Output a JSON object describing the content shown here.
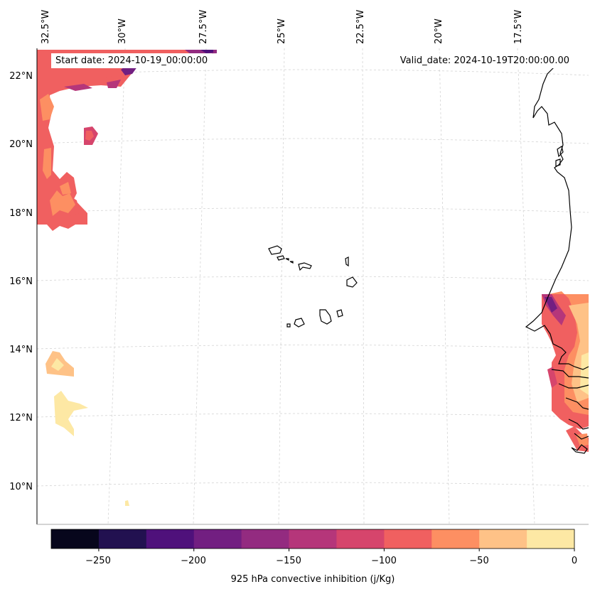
{
  "header": {
    "start_label": "Start date: 2024-10-19_00:00:00",
    "valid_label": "Valid_date: 2024-10-19T20:00:00.00"
  },
  "map": {
    "lon_labels": [
      "32.5°W",
      "30°W",
      "27.5°W",
      "25°W",
      "22.5°W",
      "20°W",
      "17.5°W"
    ],
    "lat_labels": [
      "22°N",
      "20°N",
      "18°N",
      "16°N",
      "14°N",
      "12°N",
      "10°N"
    ],
    "variable": "925 hPa convective inhibition",
    "units": "j/Kg"
  },
  "colorbar": {
    "title": "925 hPa convective inhibition (j/Kg)",
    "tick_labels": [
      "−250",
      "−200",
      "−150",
      "−100",
      "−50",
      "0"
    ],
    "levels": [
      -275,
      -250,
      -225,
      -200,
      -175,
      -150,
      -125,
      -100,
      -75,
      -50,
      -25,
      0
    ],
    "colors": [
      "#07061c",
      "#221150",
      "#4f117b",
      "#721f81",
      "#932b80",
      "#b5367a",
      "#d6456c",
      "#f06060",
      "#fd8f62",
      "#fec287",
      "#fde8a4"
    ]
  },
  "colors": {
    "coast": "#000000",
    "grid": "#cccccc"
  }
}
